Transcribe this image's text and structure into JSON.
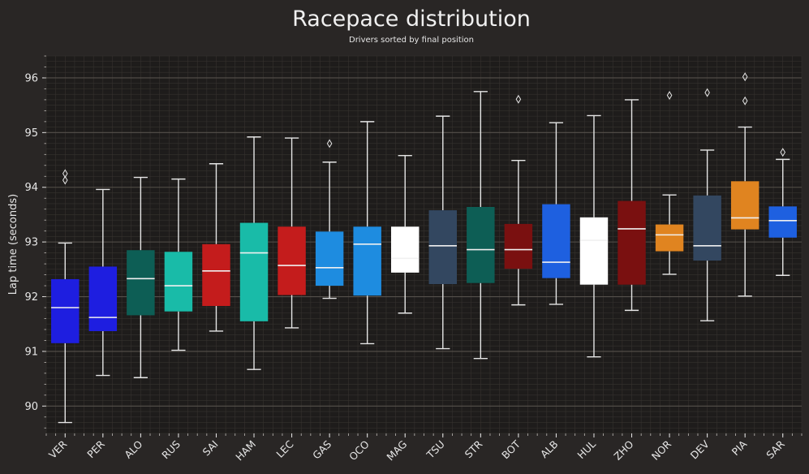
{
  "chart_data": {
    "type": "box",
    "title": "Racepace distribution",
    "subtitle": "Drivers sorted by final position",
    "xlabel": "",
    "ylabel": "Lap time (seconds)",
    "ylim": [
      89.5,
      96.4
    ],
    "yticks": [
      90,
      91,
      92,
      93,
      94,
      95,
      96
    ],
    "grid": true,
    "background": "#1e1c1b",
    "figure_background": "#292625",
    "median_color": "#f0f0f0",
    "whisker_color": "#e6e6e6",
    "series": [
      {
        "driver": "VER",
        "color": "#1e1ee0",
        "q1": 91.15,
        "median": 91.8,
        "q3": 92.32,
        "whisker_low": 89.7,
        "whisker_high": 92.98,
        "outliers": [
          94.13,
          94.25
        ]
      },
      {
        "driver": "PER",
        "color": "#1e1ee0",
        "q1": 91.37,
        "median": 91.62,
        "q3": 92.55,
        "whisker_low": 90.56,
        "whisker_high": 93.96,
        "outliers": []
      },
      {
        "driver": "ALO",
        "color": "#0d5e55",
        "q1": 91.66,
        "median": 92.33,
        "q3": 92.85,
        "whisker_low": 90.52,
        "whisker_high": 94.18,
        "outliers": []
      },
      {
        "driver": "RUS",
        "color": "#19bba8",
        "q1": 91.73,
        "median": 92.2,
        "q3": 92.82,
        "whisker_low": 91.02,
        "whisker_high": 94.15,
        "outliers": []
      },
      {
        "driver": "SAI",
        "color": "#c41c1c",
        "q1": 91.83,
        "median": 92.47,
        "q3": 92.96,
        "whisker_low": 91.37,
        "whisker_high": 94.43,
        "outliers": []
      },
      {
        "driver": "HAM",
        "color": "#19bba8",
        "q1": 91.55,
        "median": 92.8,
        "q3": 93.35,
        "whisker_low": 90.67,
        "whisker_high": 94.92,
        "outliers": []
      },
      {
        "driver": "LEC",
        "color": "#c41c1c",
        "q1": 92.03,
        "median": 92.57,
        "q3": 93.28,
        "whisker_low": 91.43,
        "whisker_high": 94.9,
        "outliers": []
      },
      {
        "driver": "GAS",
        "color": "#1e8ce0",
        "q1": 92.2,
        "median": 92.53,
        "q3": 93.19,
        "whisker_low": 91.97,
        "whisker_high": 94.46,
        "outliers": [
          94.8
        ]
      },
      {
        "driver": "OCO",
        "color": "#1e8ce0",
        "q1": 92.02,
        "median": 92.96,
        "q3": 93.28,
        "whisker_low": 91.14,
        "whisker_high": 95.2,
        "outliers": []
      },
      {
        "driver": "MAG",
        "color": "#ffffff",
        "q1": 92.44,
        "median": 92.7,
        "q3": 93.28,
        "whisker_low": 91.7,
        "whisker_high": 94.58,
        "outliers": []
      },
      {
        "driver": "TSU",
        "color": "#334760",
        "q1": 92.23,
        "median": 92.93,
        "q3": 93.58,
        "whisker_low": 91.05,
        "whisker_high": 95.3,
        "outliers": []
      },
      {
        "driver": "STR",
        "color": "#0d5e55",
        "q1": 92.25,
        "median": 92.86,
        "q3": 93.64,
        "whisker_low": 90.87,
        "whisker_high": 95.75,
        "outliers": []
      },
      {
        "driver": "BOT",
        "color": "#7a1010",
        "q1": 92.51,
        "median": 92.86,
        "q3": 93.33,
        "whisker_low": 91.85,
        "whisker_high": 94.49,
        "outliers": [
          95.61
        ]
      },
      {
        "driver": "ALB",
        "color": "#1e60e0",
        "q1": 92.34,
        "median": 92.63,
        "q3": 93.69,
        "whisker_low": 91.86,
        "whisker_high": 95.18,
        "outliers": []
      },
      {
        "driver": "HUL",
        "color": "#ffffff",
        "q1": 92.22,
        "median": 93.03,
        "q3": 93.45,
        "whisker_low": 90.9,
        "whisker_high": 95.31,
        "outliers": []
      },
      {
        "driver": "ZHO",
        "color": "#7a1010",
        "q1": 92.22,
        "median": 93.24,
        "q3": 93.75,
        "whisker_low": 91.75,
        "whisker_high": 95.6,
        "outliers": []
      },
      {
        "driver": "NOR",
        "color": "#e08420",
        "q1": 92.83,
        "median": 93.13,
        "q3": 93.32,
        "whisker_low": 92.41,
        "whisker_high": 93.86,
        "outliers": [
          95.68
        ]
      },
      {
        "driver": "DEV",
        "color": "#334760",
        "q1": 92.66,
        "median": 92.93,
        "q3": 93.85,
        "whisker_low": 91.56,
        "whisker_high": 94.68,
        "outliers": [
          95.73
        ]
      },
      {
        "driver": "PIA",
        "color": "#e08420",
        "q1": 93.23,
        "median": 93.44,
        "q3": 94.11,
        "whisker_low": 92.01,
        "whisker_high": 95.1,
        "outliers": [
          95.58,
          96.02
        ]
      },
      {
        "driver": "SAR",
        "color": "#1e60e0",
        "q1": 93.08,
        "median": 93.39,
        "q3": 93.65,
        "whisker_low": 92.39,
        "whisker_high": 94.51,
        "outliers": [
          94.64
        ]
      }
    ]
  }
}
